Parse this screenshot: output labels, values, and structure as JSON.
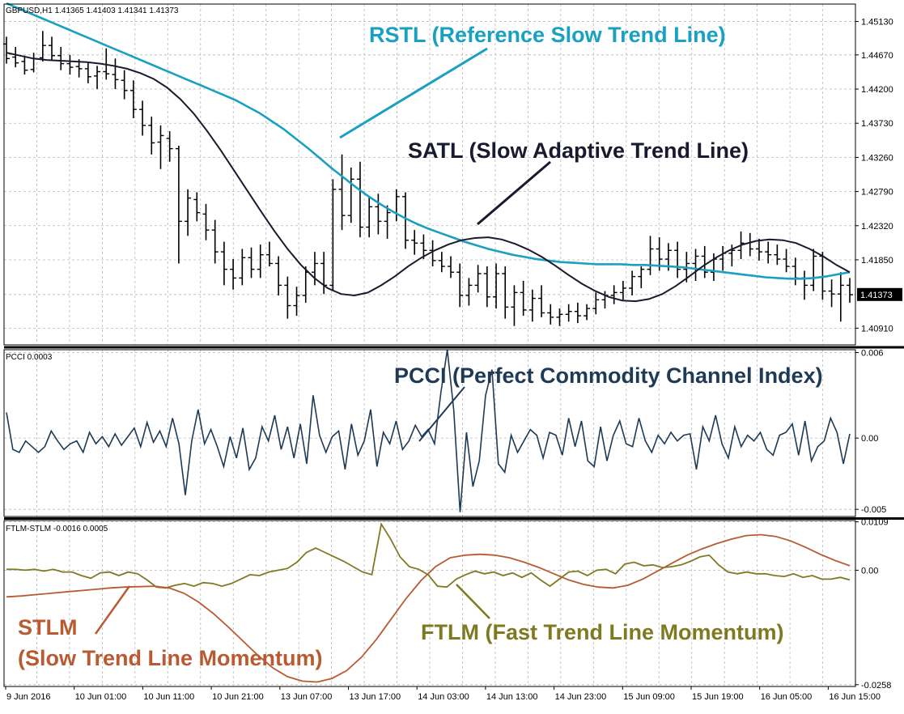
{
  "chart_data": [
    {
      "type": "line",
      "panel": "price",
      "header": "GBPUSD,H1  1.41365 1.41403 1.41341 1.41373",
      "ylim": [
        1.4068,
        1.4537
      ],
      "y_ticks": [
        "1.45130",
        "1.44670",
        "1.44200",
        "1.43730",
        "1.43260",
        "1.42790",
        "1.42320",
        "1.41850",
        "1.40910"
      ],
      "current_price": "1.41373",
      "grid": true,
      "bars": [
        [
          1.4482,
          1.4492,
          1.4455,
          1.4462
        ],
        [
          1.4464,
          1.4478,
          1.445,
          1.4456
        ],
        [
          1.4458,
          1.4466,
          1.444,
          1.4446
        ],
        [
          1.4447,
          1.447,
          1.4443,
          1.4462
        ],
        [
          1.4463,
          1.45,
          1.4458,
          1.448
        ],
        [
          1.448,
          1.4492,
          1.446,
          1.4466
        ],
        [
          1.4466,
          1.4478,
          1.4446,
          1.4455
        ],
        [
          1.4455,
          1.4467,
          1.444,
          1.445
        ],
        [
          1.4451,
          1.4461,
          1.4436,
          1.4448
        ],
        [
          1.4448,
          1.4456,
          1.4428,
          1.4437
        ],
        [
          1.4438,
          1.4452,
          1.442,
          1.4444
        ],
        [
          1.4444,
          1.4476,
          1.4433,
          1.4441
        ],
        [
          1.444,
          1.4462,
          1.442,
          1.4433
        ],
        [
          1.4432,
          1.4446,
          1.4406,
          1.4418
        ],
        [
          1.4418,
          1.4432,
          1.438,
          1.4392
        ],
        [
          1.4392,
          1.4404,
          1.4356,
          1.437
        ],
        [
          1.437,
          1.4382,
          1.433,
          1.4346
        ],
        [
          1.4347,
          1.437,
          1.431,
          1.4356
        ],
        [
          1.4352,
          1.4362,
          1.432,
          1.4338
        ],
        [
          1.4338,
          1.4342,
          1.418,
          1.4238
        ],
        [
          1.4238,
          1.4282,
          1.4218,
          1.427
        ],
        [
          1.4268,
          1.4278,
          1.4238,
          1.425
        ],
        [
          1.4248,
          1.4262,
          1.4212,
          1.4226
        ],
        [
          1.4226,
          1.424,
          1.418,
          1.4196
        ],
        [
          1.4196,
          1.421,
          1.415,
          1.4172
        ],
        [
          1.4172,
          1.4186,
          1.4144,
          1.416
        ],
        [
          1.416,
          1.42,
          1.415,
          1.4188
        ],
        [
          1.4188,
          1.4202,
          1.416,
          1.4172
        ],
        [
          1.4172,
          1.4206,
          1.416,
          1.4192
        ],
        [
          1.4192,
          1.421,
          1.4176,
          1.418
        ],
        [
          1.418,
          1.419,
          1.4136,
          1.415
        ],
        [
          1.415,
          1.4162,
          1.4104,
          1.4122
        ],
        [
          1.4122,
          1.4148,
          1.4108,
          1.4136
        ],
        [
          1.4136,
          1.4176,
          1.4126,
          1.4168
        ],
        [
          1.4168,
          1.4196,
          1.415,
          1.418
        ],
        [
          1.418,
          1.4196,
          1.4138,
          1.415
        ],
        [
          1.415,
          1.4296,
          1.4142,
          1.4282
        ],
        [
          1.4282,
          1.433,
          1.4226,
          1.4246
        ],
        [
          1.4246,
          1.4312,
          1.4236,
          1.4296
        ],
        [
          1.4296,
          1.432,
          1.4216,
          1.423
        ],
        [
          1.423,
          1.4272,
          1.4216,
          1.4258
        ],
        [
          1.4258,
          1.4276,
          1.422,
          1.4238
        ],
        [
          1.4238,
          1.426,
          1.4214,
          1.425
        ],
        [
          1.425,
          1.4282,
          1.4238,
          1.4272
        ],
        [
          1.4272,
          1.4278,
          1.42,
          1.4212
        ],
        [
          1.4212,
          1.4226,
          1.4192,
          1.4208
        ],
        [
          1.4208,
          1.422,
          1.4186,
          1.4198
        ],
        [
          1.4198,
          1.4212,
          1.4176,
          1.4184
        ],
        [
          1.4184,
          1.4196,
          1.4168,
          1.4176
        ],
        [
          1.4176,
          1.419,
          1.416,
          1.4168
        ],
        [
          1.4168,
          1.418,
          1.412,
          1.4136
        ],
        [
          1.4136,
          1.416,
          1.4122,
          1.415
        ],
        [
          1.415,
          1.4178,
          1.414,
          1.4166
        ],
        [
          1.4166,
          1.4176,
          1.412,
          1.4134
        ],
        [
          1.4134,
          1.418,
          1.4118,
          1.4166
        ],
        [
          1.4166,
          1.4176,
          1.4104,
          1.412
        ],
        [
          1.412,
          1.415,
          1.4094,
          1.414
        ],
        [
          1.414,
          1.4156,
          1.4108,
          1.4116
        ],
        [
          1.4116,
          1.4144,
          1.41,
          1.4132
        ],
        [
          1.4132,
          1.415,
          1.4106,
          1.4112
        ],
        [
          1.4112,
          1.4124,
          1.4096,
          1.4106
        ],
        [
          1.4106,
          1.4118,
          1.4094,
          1.411
        ],
        [
          1.411,
          1.4124,
          1.41,
          1.4114
        ],
        [
          1.4114,
          1.4126,
          1.4098,
          1.4108
        ],
        [
          1.4108,
          1.4124,
          1.4102,
          1.4118
        ],
        [
          1.4118,
          1.414,
          1.411,
          1.413
        ],
        [
          1.413,
          1.4142,
          1.4118,
          1.4136
        ],
        [
          1.4136,
          1.415,
          1.4124,
          1.414
        ],
        [
          1.414,
          1.4156,
          1.413,
          1.4146
        ],
        [
          1.4146,
          1.417,
          1.4136,
          1.4162
        ],
        [
          1.4162,
          1.4176,
          1.4146,
          1.4172
        ],
        [
          1.4172,
          1.4218,
          1.4164,
          1.42
        ],
        [
          1.42,
          1.4216,
          1.417,
          1.4186
        ],
        [
          1.4186,
          1.4208,
          1.417,
          1.4198
        ],
        [
          1.4198,
          1.421,
          1.416,
          1.4172
        ],
        [
          1.4172,
          1.4196,
          1.4154,
          1.418
        ],
        [
          1.418,
          1.42,
          1.4156,
          1.419
        ],
        [
          1.419,
          1.4204,
          1.416,
          1.4168
        ],
        [
          1.4168,
          1.4194,
          1.4156,
          1.4186
        ],
        [
          1.4186,
          1.4204,
          1.417,
          1.4194
        ],
        [
          1.4194,
          1.4206,
          1.4176,
          1.4198
        ],
        [
          1.4198,
          1.4224,
          1.4186,
          1.4208
        ],
        [
          1.4208,
          1.4222,
          1.419,
          1.42
        ],
        [
          1.42,
          1.4214,
          1.4184,
          1.4196
        ],
        [
          1.4196,
          1.421,
          1.418,
          1.4192
        ],
        [
          1.4192,
          1.4206,
          1.4178,
          1.4186
        ],
        [
          1.4186,
          1.42,
          1.4168,
          1.4176
        ],
        [
          1.4176,
          1.4188,
          1.415,
          1.416
        ],
        [
          1.416,
          1.417,
          1.413,
          1.415
        ],
        [
          1.415,
          1.42,
          1.4142,
          1.419
        ],
        [
          1.419,
          1.4196,
          1.413,
          1.4142
        ],
        [
          1.4142,
          1.4158,
          1.412,
          1.4138
        ],
        [
          1.4138,
          1.4168,
          1.41,
          1.415
        ],
        [
          1.415,
          1.416,
          1.4126,
          1.4137
        ]
      ],
      "series": [
        {
          "name": "RSTL",
          "color": "#1aa0c0",
          "values": [
            1.4538,
            1.4531,
            1.4524,
            1.4517,
            1.451,
            1.4503,
            1.4496,
            1.4489,
            1.4482,
            1.4475,
            1.4468,
            1.4461,
            1.4454,
            1.4447,
            1.444,
            1.4433,
            1.4426,
            1.4419,
            1.4412,
            1.4405,
            1.4396,
            1.4387,
            1.4376,
            1.4365,
            1.4352,
            1.4339,
            1.4325,
            1.4311,
            1.4298,
            1.4285,
            1.4273,
            1.4262,
            1.4252,
            1.4243,
            1.4235,
            1.4228,
            1.4222,
            1.4216,
            1.421,
            1.4205,
            1.42,
            1.4196,
            1.4192,
            1.4189,
            1.4186,
            1.4184,
            1.4182,
            1.4181,
            1.418,
            1.4179,
            1.4179,
            1.4179,
            1.4178,
            1.4178,
            1.4177,
            1.4176,
            1.4175,
            1.4173,
            1.4171,
            1.4169,
            1.4167,
            1.4165,
            1.4163,
            1.4161,
            1.416,
            1.4159,
            1.4159,
            1.416,
            1.4162,
            1.4165,
            1.4168
          ]
        },
        {
          "name": "SATL",
          "color": "#1a1a2e",
          "values": [
            1.447,
            1.4466,
            1.4462,
            1.446,
            1.4459,
            1.4458,
            1.4457,
            1.4455,
            1.4452,
            1.4448,
            1.4442,
            1.4434,
            1.4422,
            1.4406,
            1.4386,
            1.4362,
            1.4336,
            1.4308,
            1.428,
            1.4252,
            1.4225,
            1.42,
            1.4178,
            1.416,
            1.4146,
            1.4138,
            1.4136,
            1.414,
            1.415,
            1.4162,
            1.4176,
            1.4188,
            1.4198,
            1.4206,
            1.4212,
            1.4215,
            1.4216,
            1.4213,
            1.4207,
            1.4199,
            1.4189,
            1.4177,
            1.4164,
            1.4152,
            1.4142,
            1.4134,
            1.4129,
            1.4128,
            1.4131,
            1.4138,
            1.4149,
            1.4162,
            1.4176,
            1.4188,
            1.4198,
            1.4206,
            1.4211,
            1.4213,
            1.4212,
            1.4208,
            1.42,
            1.419,
            1.4178,
            1.4168
          ]
        }
      ]
    },
    {
      "type": "line",
      "panel": "pcci",
      "header": "PCCI 0.0003",
      "ylim": [
        -0.0055,
        0.0062
      ],
      "y_ticks": [
        "0.006",
        "0.00",
        "-0.005"
      ],
      "grid": true,
      "series": [
        {
          "name": "PCCI",
          "color": "#1e3a55",
          "values": [
            0.0018,
            -0.0008,
            -0.001,
            -0.0002,
            -0.0006,
            -0.001,
            -0.0006,
            0.0005,
            -0.0002,
            -0.0008,
            -0.0004,
            -0.0002,
            -0.001,
            0.0004,
            -0.0004,
            0.0001,
            -0.0006,
            0.0003,
            -0.0005,
            0.0001,
            0.0007,
            -0.0006,
            0.0011,
            -0.0003,
            0.0005,
            -0.0006,
            0.0014,
            -0.0004,
            -0.004,
            -0.0002,
            0.002,
            -0.0004,
            0.0006,
            -0.0006,
            -0.002,
            0.0001,
            -0.0014,
            0.0007,
            -0.0022,
            -0.0014,
            0.0008,
            -0.0002,
            0.0016,
            -0.0008,
            0.0008,
            -0.0014,
            0.001,
            -0.0018,
            0.003,
            0.0002,
            -0.001,
            0.0001,
            0.0005,
            -0.0022,
            0.001,
            -0.0012,
            -0.0002,
            0.002,
            -0.002,
            0.0004,
            -0.0004,
            0.0012,
            -0.0008,
            -0.0002,
            0.0009,
            0.0001,
            0.0006,
            -0.0004,
            0.0032,
            0.0062,
            0.002,
            -0.0052,
            0.0004,
            -0.0034,
            -0.0016,
            0.003,
            0.0048,
            -0.0018,
            -0.0024,
            0.0002,
            -0.001,
            -0.0002,
            0.0006,
            0.0002,
            -0.0014,
            0.0004,
            0.0002,
            -0.0012,
            0.0014,
            -0.0006,
            0.0012,
            -0.0016,
            -0.002,
            0.0008,
            -0.0016,
            0.0002,
            0.0012,
            -0.0004,
            -0.0006,
            0.0014,
            -0.0002,
            -0.001,
            0.0002,
            -0.0004,
            0.0004,
            -0.0002,
            0.0002,
            0.0003,
            -0.0022,
            0.0008,
            -0.0002,
            0.0016,
            -0.0004,
            -0.0014,
            0.0008,
            -0.0006,
            0.0002,
            -0.0002,
            0.0004,
            -0.0008,
            -0.0012,
            0.0002,
            0.0004,
            0.001,
            -0.0012,
            0.0012,
            -0.0016,
            -0.0006,
            -0.0002,
            0.0014,
            0.0004,
            -0.0018,
            0.0003
          ]
        }
      ]
    },
    {
      "type": "line",
      "panel": "ftlm_stlm",
      "header": "FTLM-STLM -0.0016 0.0005",
      "ylim": [
        -0.0262,
        0.0112
      ],
      "y_ticks": [
        "0.0109",
        "0.00",
        "-0.0258"
      ],
      "grid": true,
      "series": [
        {
          "name": "FTLM",
          "color": "#7f7a22",
          "values": [
            0.0002,
            0.0002,
            0.0,
            0.0002,
            -0.0002,
            0.0002,
            -0.0004,
            -0.0004,
            -0.0012,
            -0.0018,
            -0.0006,
            -0.0004,
            -0.0012,
            -0.0004,
            -0.0008,
            -0.0022,
            -0.0038,
            -0.004,
            -0.0034,
            -0.003,
            -0.0036,
            -0.0028,
            -0.003,
            -0.0036,
            -0.003,
            -0.002,
            -0.001,
            -0.0012,
            -0.0004,
            0.0,
            0.0004,
            0.0018,
            0.004,
            0.005,
            0.004,
            0.003,
            0.002,
            0.0008,
            -0.0004,
            -0.001,
            0.0104,
            0.007,
            0.003,
            0.0008,
            0.0002,
            -0.001,
            -0.0036,
            -0.0038,
            -0.002,
            -0.001,
            -0.0002,
            -0.0008,
            -0.0004,
            -0.0012,
            -0.0006,
            -0.0016,
            -0.0006,
            -0.0022,
            -0.0036,
            -0.002,
            -0.0004,
            -0.0002,
            -0.0012,
            0.0,
            0.0002,
            -0.0008,
            0.0014,
            0.0018,
            0.001,
            0.0012,
            0.0006,
            0.0008,
            0.0012,
            0.002,
            0.003,
            0.0034,
            0.0012,
            -0.0004,
            -0.0008,
            -0.0004,
            -0.0008,
            -0.0008,
            -0.0012,
            -0.0014,
            -0.0008,
            -0.0016,
            -0.0012,
            -0.002,
            -0.002,
            -0.0016,
            -0.0022
          ]
        },
        {
          "name": "STLM",
          "color": "#b85a32",
          "values": [
            -0.006,
            -0.0058,
            -0.0055,
            -0.0052,
            -0.0049,
            -0.0046,
            -0.0043,
            -0.004,
            -0.0038,
            -0.0037,
            -0.0036,
            -0.004,
            -0.0052,
            -0.0072,
            -0.0098,
            -0.0128,
            -0.016,
            -0.0192,
            -0.022,
            -0.024,
            -0.025,
            -0.0252,
            -0.0244,
            -0.0226,
            -0.0196,
            -0.0156,
            -0.011,
            -0.0064,
            -0.0024,
            0.0008,
            0.0028,
            0.0034,
            0.0036,
            0.0034,
            0.0028,
            0.0018,
            0.0006,
            -0.0008,
            -0.0022,
            -0.0032,
            -0.0038,
            -0.004,
            -0.0034,
            -0.002,
            -0.0002,
            0.0016,
            0.0034,
            0.0048,
            0.006,
            0.007,
            0.0078,
            0.008,
            0.0076,
            0.0066,
            0.0052,
            0.0036,
            0.0022,
            0.001
          ]
        }
      ]
    }
  ],
  "annotations": {
    "rstl": "RSTL (Reference Slow Trend Line)",
    "satl": "SATL (Slow Adaptive Trend Line)",
    "pcci": "PCCI (Perfect Commodity Channel Index)",
    "stlm_1": "STLM",
    "stlm_2": "(Slow Trend Line Momentum)",
    "ftlm": "FTLM (Fast Trend Line Momentum)"
  },
  "colors": {
    "rstl_label": "#1aa0c0",
    "satl_label": "#1a1a2e",
    "pcci_label": "#1e3a55",
    "stlm_label": "#b85a32",
    "ftlm_label": "#7f7a22"
  },
  "x_ticks": [
    "9 Jun 2016",
    "10 Jun 01:00",
    "10 Jun 11:00",
    "10 Jun 21:00",
    "13 Jun 07:00",
    "13 Jun 17:00",
    "14 Jun 03:00",
    "14 Jun 13:00",
    "14 Jun 23:00",
    "15 Jun 09:00",
    "15 Jun 19:00",
    "16 Jun 05:00",
    "16 Jun 15:00"
  ]
}
